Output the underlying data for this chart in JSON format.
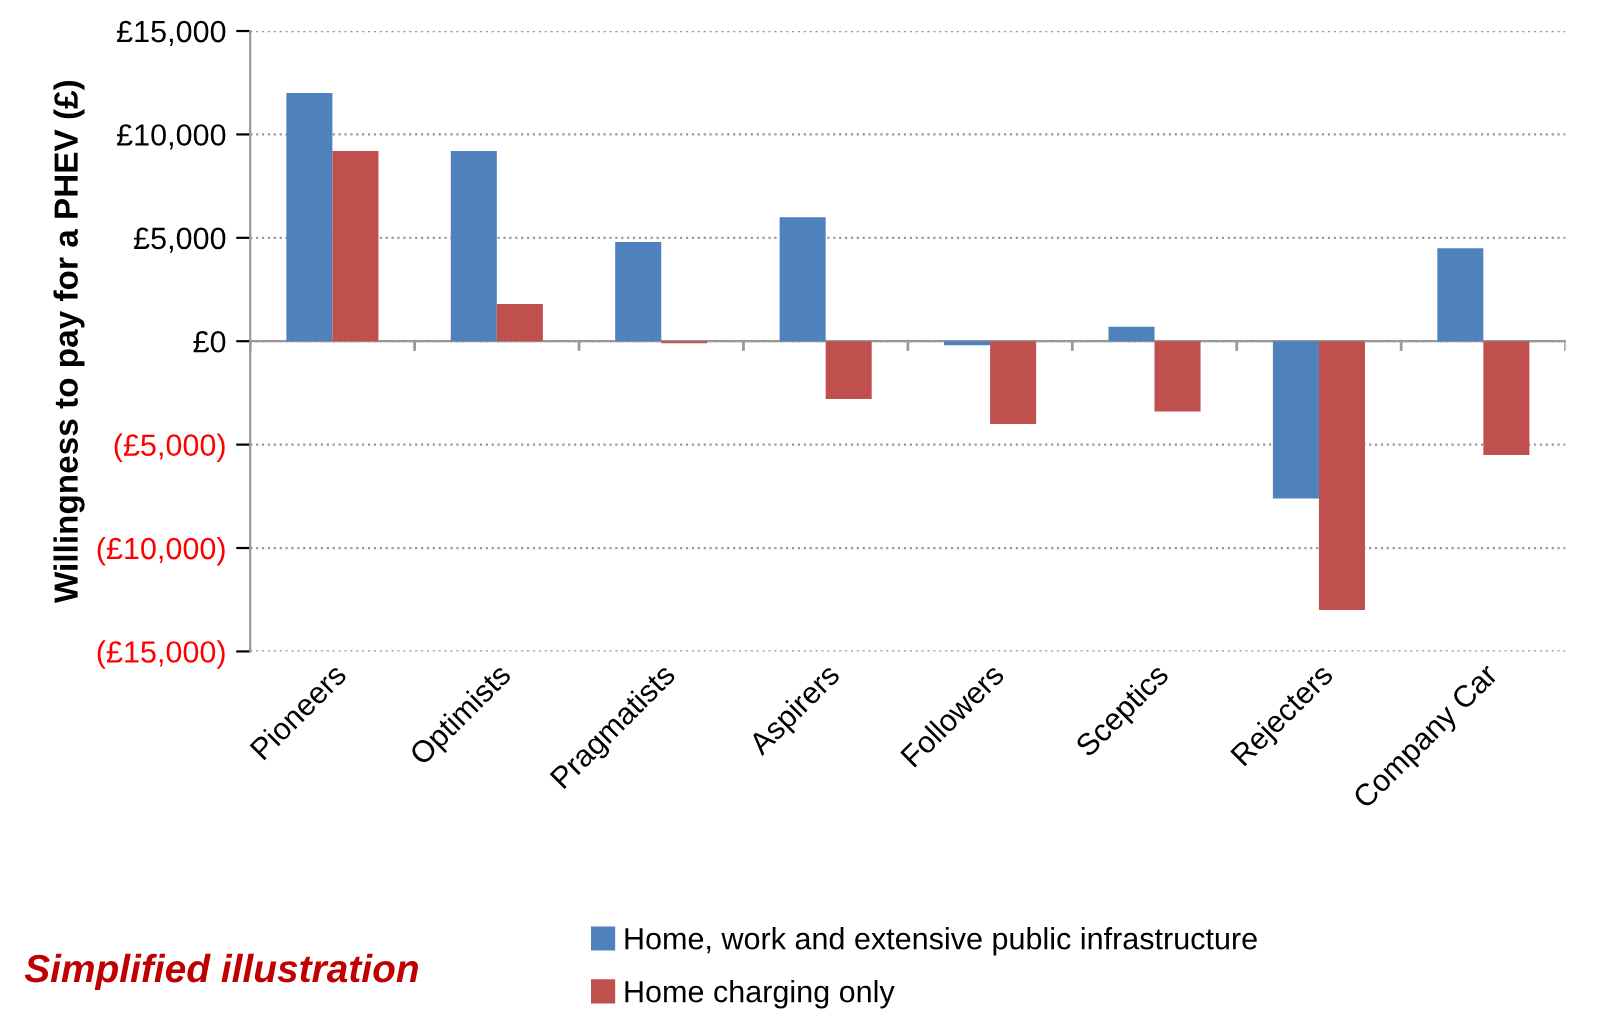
{
  "chart_data": {
    "type": "bar",
    "ylabel": "Willingness to pay for a PHEV (£)",
    "categories": [
      "Pioneers",
      "Optimists",
      "Pragmatists",
      "Aspirers",
      "Followers",
      "Sceptics",
      "Rejecters",
      "Company Car"
    ],
    "series": [
      {
        "name": "Home, work and extensive public infrastructure",
        "color": "#4f81bd",
        "values": [
          12000,
          9200,
          4800,
          6000,
          -200,
          700,
          -7600,
          4500
        ]
      },
      {
        "name": "Home charging only",
        "color": "#c0504d",
        "values": [
          9200,
          1800,
          -100,
          -2800,
          -4000,
          -3400,
          -13000,
          -5500
        ]
      }
    ],
    "ylim": [
      -15000,
      15000
    ],
    "yticks": [
      {
        "value": -15000,
        "label": "(£15,000)"
      },
      {
        "value": -10000,
        "label": "(£10,000)"
      },
      {
        "value": -5000,
        "label": "(£5,000)"
      },
      {
        "value": 0,
        "label": "£0"
      },
      {
        "value": 5000,
        "label": "£5,000"
      },
      {
        "value": 10000,
        "label": "£10,000"
      },
      {
        "value": 15000,
        "label": "£15,000"
      }
    ],
    "grid": "y",
    "legend": "bottom",
    "annotations": [
      "Simplified illustration"
    ]
  }
}
